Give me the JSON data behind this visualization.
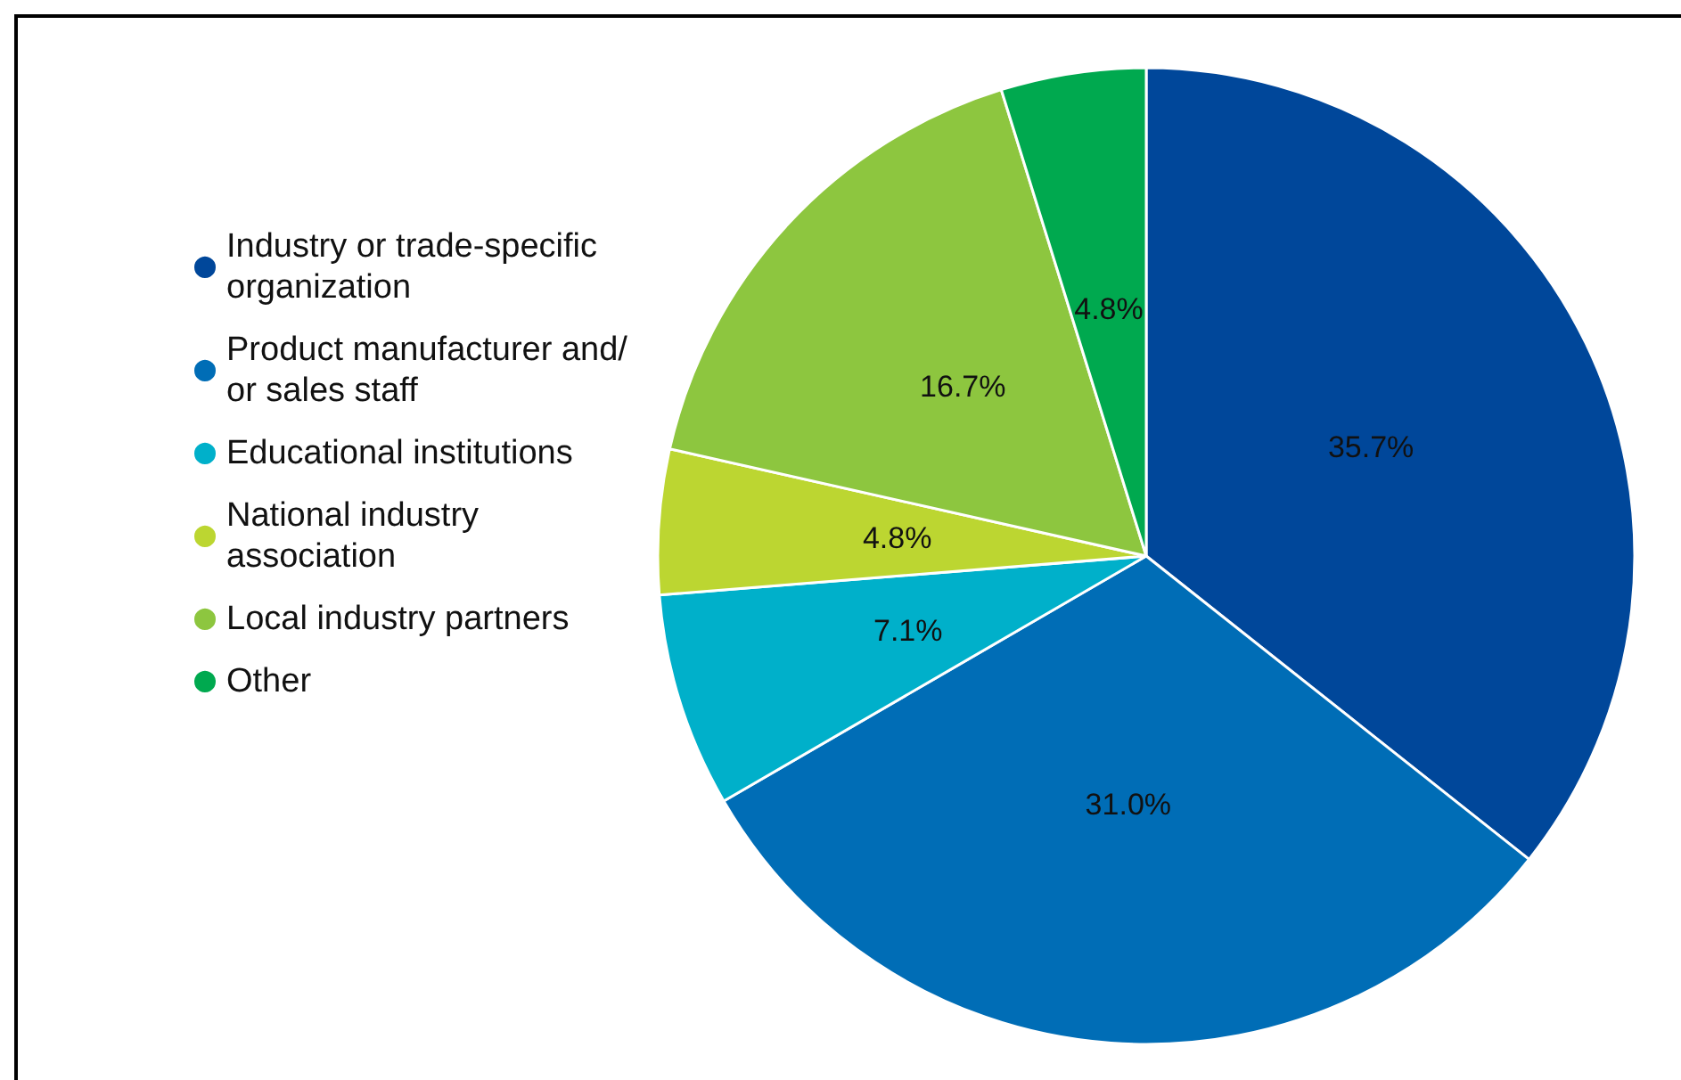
{
  "chart_data": {
    "type": "pie",
    "categories": [
      "Industry or trade-specific organization",
      "Product manufacturer and/or sales staff",
      "Educational institutions",
      "National industry association",
      "Local industry partners",
      "Other"
    ],
    "values": [
      35.7,
      31.0,
      7.1,
      4.8,
      16.7,
      4.8
    ],
    "colors": [
      "#00479a",
      "#006db6",
      "#00b0ca",
      "#bcd631",
      "#8dc63f",
      "#00a94f"
    ],
    "value_labels": [
      "35.7%",
      "31.0%",
      "7.1%",
      "4.8%",
      "16.7%",
      "4.8%"
    ],
    "legend": "left"
  }
}
